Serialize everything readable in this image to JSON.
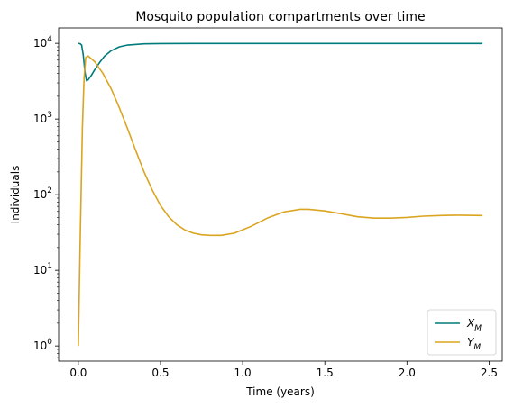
{
  "chart_data": {
    "type": "line",
    "title": "Mosquito population compartments over time",
    "xlabel": "Time (years)",
    "ylabel": "Individuals",
    "xlim": [
      -0.12,
      2.58
    ],
    "ylim": [
      0.63,
      16000
    ],
    "yscale": "log",
    "grid": false,
    "legend_position": "lower right",
    "x_ticks": [
      {
        "value": 0.0,
        "label": "0.0"
      },
      {
        "value": 0.5,
        "label": "0.5"
      },
      {
        "value": 1.0,
        "label": "1.0"
      },
      {
        "value": 1.5,
        "label": "1.5"
      },
      {
        "value": 2.0,
        "label": "2.0"
      },
      {
        "value": 2.5,
        "label": "2.5"
      }
    ],
    "y_ticks": [
      {
        "value": 1,
        "base": "10",
        "exp": "0"
      },
      {
        "value": 10,
        "base": "10",
        "exp": "1"
      },
      {
        "value": 100,
        "base": "10",
        "exp": "2"
      },
      {
        "value": 1000,
        "base": "10",
        "exp": "3"
      },
      {
        "value": 10000,
        "base": "10",
        "exp": "4"
      }
    ],
    "series": [
      {
        "name": "X",
        "subscript": "M",
        "color": "#007b7b",
        "points": [
          [
            0,
            10000
          ],
          [
            0.01,
            9900
          ],
          [
            0.02,
            9500
          ],
          [
            0.03,
            7000
          ],
          [
            0.04,
            4200
          ],
          [
            0.05,
            3200
          ],
          [
            0.06,
            3300
          ],
          [
            0.08,
            3800
          ],
          [
            0.1,
            4500
          ],
          [
            0.13,
            5600
          ],
          [
            0.16,
            6800
          ],
          [
            0.2,
            8000
          ],
          [
            0.25,
            9000
          ],
          [
            0.3,
            9500
          ],
          [
            0.4,
            9850
          ],
          [
            0.5,
            9930
          ],
          [
            0.7,
            9950
          ],
          [
            1.0,
            9950
          ],
          [
            1.5,
            9950
          ],
          [
            2.0,
            9950
          ],
          [
            2.46,
            9950
          ]
        ]
      },
      {
        "name": "Y",
        "subscript": "M",
        "color": "#daa520",
        "points": [
          [
            0.0,
            1
          ],
          [
            0.012,
            30
          ],
          [
            0.025,
            800
          ],
          [
            0.035,
            3500
          ],
          [
            0.045,
            6500
          ],
          [
            0.06,
            6800
          ],
          [
            0.1,
            5700
          ],
          [
            0.15,
            4000
          ],
          [
            0.2,
            2500
          ],
          [
            0.25,
            1400
          ],
          [
            0.3,
            740
          ],
          [
            0.35,
            380
          ],
          [
            0.4,
            200
          ],
          [
            0.45,
            115
          ],
          [
            0.5,
            72
          ],
          [
            0.55,
            51
          ],
          [
            0.6,
            40
          ],
          [
            0.65,
            34
          ],
          [
            0.7,
            31
          ],
          [
            0.75,
            29.5
          ],
          [
            0.8,
            29
          ],
          [
            0.87,
            29
          ],
          [
            0.95,
            31
          ],
          [
            1.05,
            38
          ],
          [
            1.15,
            49
          ],
          [
            1.25,
            59
          ],
          [
            1.35,
            64
          ],
          [
            1.4,
            64
          ],
          [
            1.5,
            61
          ],
          [
            1.6,
            56
          ],
          [
            1.7,
            51
          ],
          [
            1.8,
            49
          ],
          [
            1.9,
            49
          ],
          [
            2.0,
            50
          ],
          [
            2.1,
            52
          ],
          [
            2.2,
            53
          ],
          [
            2.3,
            53.5
          ],
          [
            2.46,
            53
          ]
        ]
      }
    ]
  }
}
